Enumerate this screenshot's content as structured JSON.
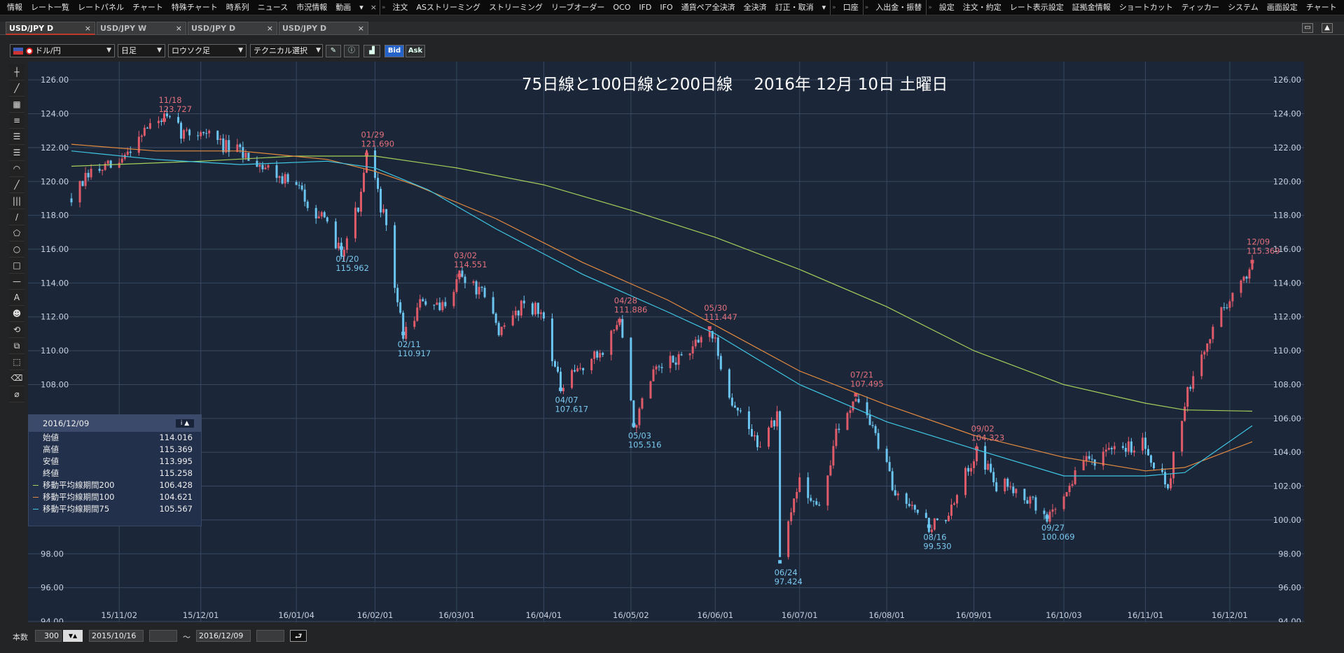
{
  "menu": {
    "groups": [
      [
        "情報",
        "レート一覧",
        "レートパネル",
        "チャート",
        "特殊チャート",
        "時系列",
        "ニュース",
        "市況情報",
        "動画"
      ],
      [
        "注文",
        "ASストリーミング",
        "ストリーミング",
        "リーブオーダー",
        "OCO",
        "IFD",
        "IFO",
        "通貨ペア全決済",
        "全決済",
        "訂正・取消"
      ],
      [
        "口座"
      ],
      [
        "入出金・振替"
      ],
      [
        "設定",
        "注文・約定",
        "レート表示設定",
        "証拠金情報",
        "ショートカット",
        "ティッカー",
        "システム",
        "画面設定",
        "チャート"
      ]
    ],
    "more": "▾",
    "close": "×"
  },
  "tabs": [
    "USD/JPY D",
    "USD/JPY W",
    "USD/JPY D",
    "USD/JPY D"
  ],
  "tab_close": "×",
  "window_buttons": [
    "▭",
    "▲"
  ],
  "toolbar": {
    "pair": "ドル/円",
    "timeframe": "日足",
    "chart_type": "ロウソク足",
    "technical": "テクニカル選択",
    "bid": "Bid",
    "ask": "Ask",
    "caret": "▼"
  },
  "tools": [
    "┼",
    "╱",
    "▦",
    "≡",
    "☰",
    "☰",
    "◠",
    "╱",
    "|||",
    "∕",
    "⬠",
    "○",
    "□",
    "—",
    "A",
    "☻",
    "⟲",
    "⧉",
    "⬚",
    "⌫",
    "⌀"
  ],
  "chart_data": {
    "type": "candlestick",
    "title": "75日線と100日線と200日線　 2016年 12月 10日 土曜日",
    "ylim": [
      94,
      127
    ],
    "y_ticks": [
      "126.00",
      "124.00",
      "122.00",
      "120.00",
      "118.00",
      "116.00",
      "114.00",
      "112.00",
      "110.00",
      "108.00",
      "106.00",
      "104.00",
      "102.00",
      "100.00",
      "98.00",
      "96.00",
      "94.00"
    ],
    "x_ticks": [
      "15/11/02",
      "15/12/01",
      "16/01/04",
      "16/02/01",
      "16/03/01",
      "16/04/01",
      "16/05/02",
      "16/06/01",
      "16/07/01",
      "16/08/01",
      "16/09/01",
      "16/10/03",
      "16/11/01",
      "16/12/01"
    ],
    "x_range": [
      "2015/10/16",
      "2016/12/09"
    ],
    "path": [
      [
        "2015/10/16",
        119.0
      ],
      [
        "2015/10/23",
        120.5
      ],
      [
        "2015/11/02",
        121.0
      ],
      [
        "2015/11/10",
        123.0
      ],
      [
        "2015/11/18",
        123.727
      ],
      [
        "2015/11/25",
        122.8
      ],
      [
        "2015/12/02",
        123.0
      ],
      [
        "2015/12/10",
        122.0
      ],
      [
        "2015/12/18",
        121.5
      ],
      [
        "2015/12/28",
        120.5
      ],
      [
        "2016/01/05",
        119.5
      ],
      [
        "2016/01/12",
        118.0
      ],
      [
        "2016/01/20",
        115.962
      ],
      [
        "2016/01/27",
        119.0
      ],
      [
        "2016/01/29",
        121.69
      ],
      [
        "2016/02/04",
        118.0
      ],
      [
        "2016/02/11",
        110.917
      ],
      [
        "2016/02/18",
        113.0
      ],
      [
        "2016/02/24",
        112.3
      ],
      [
        "2016/03/02",
        114.551
      ],
      [
        "2016/03/10",
        113.3
      ],
      [
        "2016/03/17",
        111.0
      ],
      [
        "2016/03/25",
        113.0
      ],
      [
        "2016/04/01",
        112.0
      ],
      [
        "2016/04/07",
        107.617
      ],
      [
        "2016/04/14",
        109.0
      ],
      [
        "2016/04/21",
        109.8
      ],
      [
        "2016/04/28",
        111.886
      ],
      [
        "2016/05/03",
        105.516
      ],
      [
        "2016/05/10",
        108.5
      ],
      [
        "2016/05/18",
        109.5
      ],
      [
        "2016/05/24",
        110.0
      ],
      [
        "2016/05/30",
        111.447
      ],
      [
        "2016/06/07",
        107.0
      ],
      [
        "2016/06/16",
        104.5
      ],
      [
        "2016/06/23",
        106.0
      ],
      [
        "2016/06/24",
        97.424
      ],
      [
        "2016/07/01",
        102.5
      ],
      [
        "2016/07/08",
        100.5
      ],
      [
        "2016/07/14",
        105.0
      ],
      [
        "2016/07/21",
        107.495
      ],
      [
        "2016/07/28",
        105.0
      ],
      [
        "2016/08/04",
        101.5
      ],
      [
        "2016/08/10",
        101.2
      ],
      [
        "2016/08/16",
        99.53
      ],
      [
        "2016/08/24",
        100.5
      ],
      [
        "2016/09/02",
        104.323
      ],
      [
        "2016/09/09",
        102.0
      ],
      [
        "2016/09/16",
        102.0
      ],
      [
        "2016/09/27",
        100.069
      ],
      [
        "2016/10/03",
        101.5
      ],
      [
        "2016/10/10",
        103.5
      ],
      [
        "2016/10/18",
        103.8
      ],
      [
        "2016/10/25",
        104.3
      ],
      [
        "2016/10/31",
        104.7
      ],
      [
        "2016/11/09",
        102.0
      ],
      [
        "2016/11/15",
        107.0
      ],
      [
        "2016/11/22",
        110.0
      ],
      [
        "2016/11/28",
        112.5
      ],
      [
        "2016/12/05",
        113.8
      ],
      [
        "2016/12/09",
        115.369
      ]
    ],
    "series": [
      {
        "name": "移動平均線期間200",
        "color": "#a6cf5a",
        "points": [
          [
            "2015/10/16",
            120.9
          ],
          [
            "2015/12/01",
            121.2
          ],
          [
            "2016/01/04",
            121.5
          ],
          [
            "2016/02/01",
            121.5
          ],
          [
            "2016/03/01",
            120.8
          ],
          [
            "2016/04/01",
            119.8
          ],
          [
            "2016/05/02",
            118.3
          ],
          [
            "2016/06/01",
            116.7
          ],
          [
            "2016/07/01",
            114.8
          ],
          [
            "2016/08/01",
            112.6
          ],
          [
            "2016/09/01",
            110.0
          ],
          [
            "2016/10/03",
            108.0
          ],
          [
            "2016/11/01",
            106.9
          ],
          [
            "2016/11/15",
            106.5
          ],
          [
            "2016/12/09",
            106.428
          ]
        ]
      },
      {
        "name": "移動平均線期間100",
        "color": "#e48a3f",
        "points": [
          [
            "2015/10/16",
            122.2
          ],
          [
            "2015/11/15",
            121.8
          ],
          [
            "2015/12/15",
            121.8
          ],
          [
            "2016/01/15",
            121.3
          ],
          [
            "2016/02/01",
            120.6
          ],
          [
            "2016/02/15",
            119.8
          ],
          [
            "2016/03/15",
            117.8
          ],
          [
            "2016/04/15",
            115.2
          ],
          [
            "2016/05/15",
            113.0
          ],
          [
            "2016/06/01",
            111.5
          ],
          [
            "2016/07/01",
            108.8
          ],
          [
            "2016/08/01",
            106.8
          ],
          [
            "2016/09/01",
            105.0
          ],
          [
            "2016/10/03",
            103.7
          ],
          [
            "2016/11/01",
            102.9
          ],
          [
            "2016/11/15",
            103.1
          ],
          [
            "2016/12/09",
            104.621
          ]
        ]
      },
      {
        "name": "移動平均線期間75",
        "color": "#3fc7e4",
        "points": [
          [
            "2015/10/16",
            121.8
          ],
          [
            "2015/11/15",
            121.3
          ],
          [
            "2015/12/15",
            121.0
          ],
          [
            "2016/01/15",
            121.2
          ],
          [
            "2016/02/01",
            120.8
          ],
          [
            "2016/02/20",
            119.5
          ],
          [
            "2016/03/15",
            117.2
          ],
          [
            "2016/04/15",
            114.5
          ],
          [
            "2016/05/15",
            112.3
          ],
          [
            "2016/06/01",
            111.0
          ],
          [
            "2016/07/01",
            108.0
          ],
          [
            "2016/08/01",
            105.8
          ],
          [
            "2016/09/01",
            104.2
          ],
          [
            "2016/10/03",
            102.6
          ],
          [
            "2016/11/01",
            102.6
          ],
          [
            "2016/11/15",
            102.8
          ],
          [
            "2016/12/09",
            105.567
          ]
        ]
      }
    ],
    "annotations": [
      {
        "date": "11/18",
        "value": "123.727",
        "kind": "high",
        "d": "2015/11/18",
        "y": 123.727
      },
      {
        "date": "01/20",
        "value": "115.962",
        "kind": "low",
        "d": "2016/01/20",
        "y": 115.962
      },
      {
        "date": "01/29",
        "value": "121.690",
        "kind": "high",
        "d": "2016/01/29",
        "y": 121.69
      },
      {
        "date": "02/11",
        "value": "110.917",
        "kind": "low",
        "d": "2016/02/11",
        "y": 110.917
      },
      {
        "date": "03/02",
        "value": "114.551",
        "kind": "high",
        "d": "2016/03/02",
        "y": 114.551
      },
      {
        "date": "04/07",
        "value": "107.617",
        "kind": "low",
        "d": "2016/04/07",
        "y": 107.617
      },
      {
        "date": "04/28",
        "value": "111.886",
        "kind": "high",
        "d": "2016/04/28",
        "y": 111.886
      },
      {
        "date": "05/03",
        "value": "105.516",
        "kind": "low",
        "d": "2016/05/03",
        "y": 105.516
      },
      {
        "date": "05/30",
        "value": "111.447",
        "kind": "high",
        "d": "2016/05/30",
        "y": 111.447
      },
      {
        "date": "06/24",
        "value": "97.424",
        "kind": "low",
        "d": "2016/06/24",
        "y": 97.424
      },
      {
        "date": "07/21",
        "value": "107.495",
        "kind": "high",
        "d": "2016/07/21",
        "y": 107.495
      },
      {
        "date": "08/16",
        "value": "99.530",
        "kind": "low",
        "d": "2016/08/16",
        "y": 99.53
      },
      {
        "date": "09/02",
        "value": "104.323",
        "kind": "high",
        "d": "2016/09/02",
        "y": 104.323
      },
      {
        "date": "09/27",
        "value": "100.069",
        "kind": "low",
        "d": "2016/09/27",
        "y": 100.069
      },
      {
        "date": "12/09",
        "value": "115.369",
        "kind": "high",
        "d": "2016/12/09",
        "y": 115.369
      }
    ],
    "up_color": "#e05b6a",
    "down_color": "#6bc4ef"
  },
  "info": {
    "date": "2016/12/09",
    "buttons": "i ▲",
    "rows": [
      {
        "label": "始値",
        "value": "114.016"
      },
      {
        "label": "高値",
        "value": "115.369"
      },
      {
        "label": "安値",
        "value": "113.995"
      },
      {
        "label": "終値",
        "value": "115.258"
      },
      {
        "label": "移動平均線期間200",
        "value": "106.428",
        "color": "#a6cf5a"
      },
      {
        "label": "移動平均線期間100",
        "value": "104.621",
        "color": "#e48a3f"
      },
      {
        "label": "移動平均線期間75",
        "value": "105.567",
        "color": "#3fc7e4"
      }
    ]
  },
  "bottom": {
    "count_label": "本数",
    "count": "300",
    "start": "2015/10/16",
    "tilde": "〜",
    "end": "2016/12/09",
    "spin": "▼▲",
    "refresh": "⮐"
  }
}
